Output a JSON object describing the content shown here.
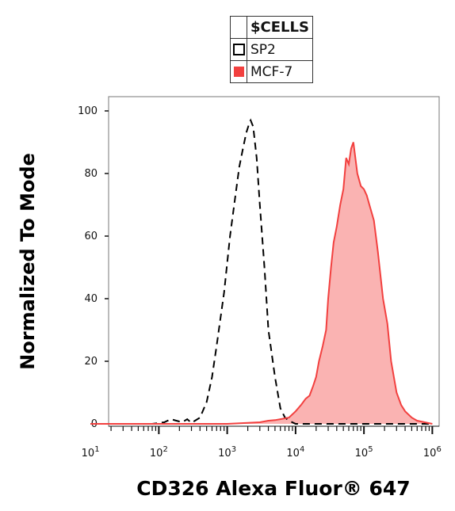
{
  "legend": {
    "header": "$CELLS",
    "items": [
      {
        "label": "SP2",
        "style": "dashed-outline",
        "color": "#000000"
      },
      {
        "label": "MCF-7",
        "style": "filled",
        "color": "#f2403f"
      }
    ]
  },
  "chart_data": {
    "type": "area",
    "xlabel": "CD326 Alexa Fluor® 647",
    "ylabel": "Normalized To Mode",
    "xscale": "log",
    "xlim": [
      10,
      1000000
    ],
    "ylim": [
      0,
      100
    ],
    "yticks": [
      0,
      20,
      40,
      60,
      80,
      100
    ],
    "xticks": [
      {
        "value": 10,
        "base": "10",
        "exp": "1"
      },
      {
        "value": 100,
        "base": "10",
        "exp": "2"
      },
      {
        "value": 1000,
        "base": "10",
        "exp": "3"
      },
      {
        "value": 10000,
        "base": "10",
        "exp": "4"
      },
      {
        "value": 100000,
        "base": "10",
        "exp": "5"
      },
      {
        "value": 1000000,
        "base": "10",
        "exp": "6"
      }
    ],
    "grid": false,
    "series": [
      {
        "name": "SP2",
        "style": "dashed",
        "color": "#000000",
        "x": [
          10,
          40,
          80,
          120,
          150,
          180,
          220,
          260,
          300,
          400,
          500,
          600,
          700,
          900,
          1100,
          1300,
          1500,
          1700,
          1900,
          2100,
          2200,
          2400,
          2700,
          3000,
          3500,
          4000,
          5000,
          6000,
          7000,
          8000,
          10000,
          15000,
          30000,
          100000,
          300000,
          1000000
        ],
        "y": [
          0,
          0,
          0,
          0.5,
          1.5,
          1.0,
          0.5,
          1.5,
          0.3,
          2,
          7,
          15,
          25,
          42,
          60,
          72,
          82,
          88,
          93,
          96,
          97,
          95,
          85,
          70,
          50,
          30,
          15,
          5,
          2,
          1,
          0,
          0,
          0,
          0,
          0,
          0
        ]
      },
      {
        "name": "MCF-7",
        "style": "filled",
        "color": "#f2403f",
        "x": [
          10,
          100,
          1000,
          2000,
          3000,
          4000,
          5000,
          6000,
          8000,
          10000,
          12000,
          14000,
          16000,
          18000,
          20000,
          22000,
          25000,
          28000,
          30000,
          33000,
          36000,
          40000,
          45000,
          50000,
          55000,
          60000,
          65000,
          70000,
          75000,
          80000,
          90000,
          100000,
          110000,
          120000,
          140000,
          160000,
          190000,
          220000,
          250000,
          300000,
          350000,
          400000,
          500000,
          600000,
          1000000
        ],
        "y": [
          0,
          0,
          0,
          0.3,
          0.5,
          1,
          1.2,
          1.5,
          2,
          4,
          6,
          8,
          9,
          12,
          15,
          20,
          25,
          30,
          40,
          50,
          58,
          63,
          70,
          75,
          85,
          83,
          88,
          90,
          85,
          80,
          76,
          75,
          73,
          70,
          65,
          55,
          40,
          32,
          20,
          10,
          6,
          4,
          2,
          1,
          0
        ]
      }
    ]
  }
}
